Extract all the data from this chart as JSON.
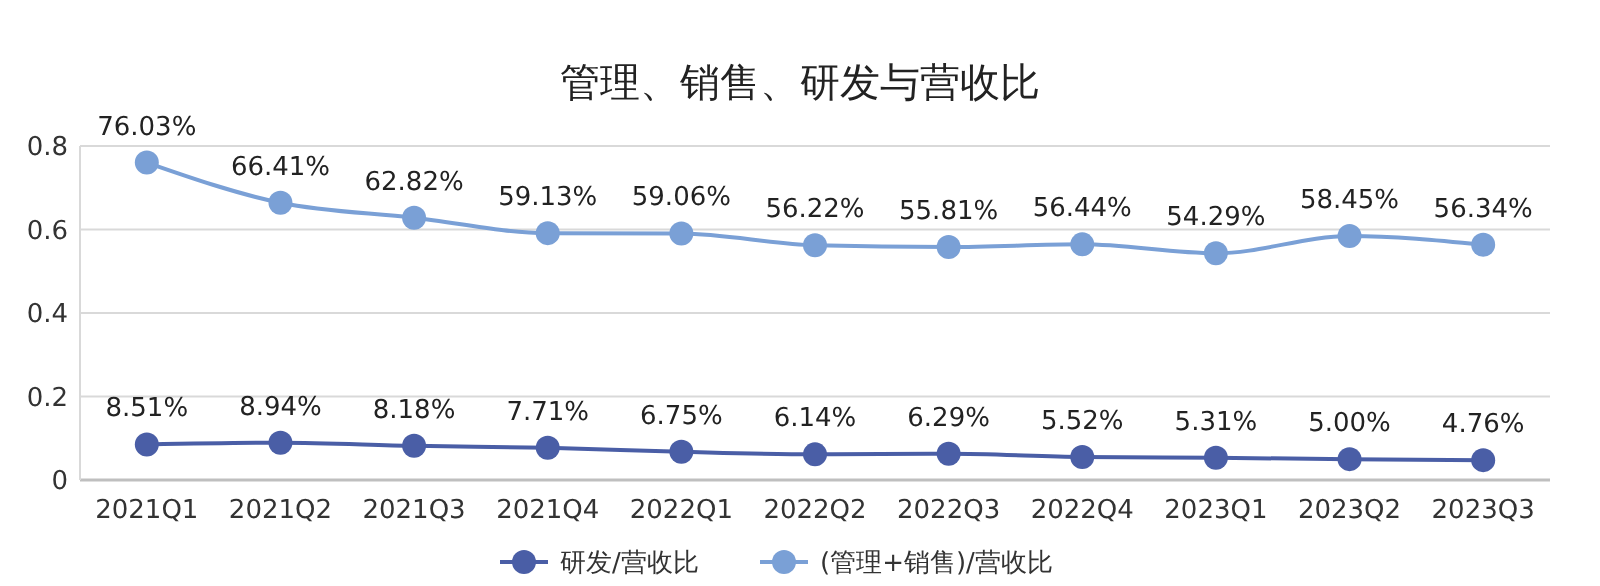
{
  "chart_data": {
    "type": "line",
    "title": "管理、销售、研发与营收比",
    "categories": [
      "2021Q1",
      "2021Q2",
      "2021Q3",
      "2021Q4",
      "2022Q1",
      "2022Q2",
      "2022Q3",
      "2022Q4",
      "2023Q1",
      "2023Q2",
      "2023Q3"
    ],
    "series": [
      {
        "name": "研发/营收比",
        "color": "#4a5ea6",
        "values": [
          0.0851,
          0.0894,
          0.0818,
          0.0771,
          0.0675,
          0.0614,
          0.0629,
          0.0552,
          0.0531,
          0.05,
          0.0476
        ],
        "value_labels": [
          "8.51%",
          "8.94%",
          "8.18%",
          "7.71%",
          "6.75%",
          "6.14%",
          "6.29%",
          "5.52%",
          "5.31%",
          "5.00%",
          "4.76%"
        ]
      },
      {
        "name": "(管理+销售)/营收比",
        "color": "#7aa0d6",
        "values": [
          0.7603,
          0.6641,
          0.6282,
          0.5913,
          0.5906,
          0.5622,
          0.5581,
          0.5644,
          0.5429,
          0.5845,
          0.5634
        ],
        "value_labels": [
          "76.03%",
          "66.41%",
          "62.82%",
          "59.13%",
          "59.06%",
          "56.22%",
          "55.81%",
          "56.44%",
          "54.29%",
          "58.45%",
          "56.34%"
        ]
      }
    ],
    "ylim": [
      0,
      0.8
    ],
    "yticks": [
      0,
      0.2,
      0.4,
      0.6,
      0.8
    ],
    "grid": "y",
    "legend": "bottom",
    "marker": "circle",
    "line_style": "solid"
  }
}
